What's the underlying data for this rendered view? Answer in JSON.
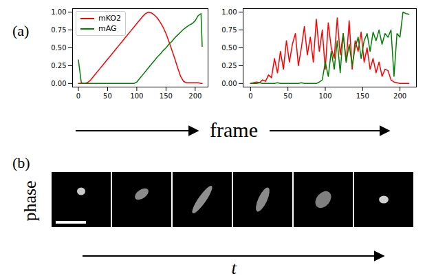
{
  "chart_data": [
    {
      "type": "line",
      "x": [
        0,
        5,
        10,
        15,
        20,
        25,
        30,
        35,
        40,
        45,
        50,
        55,
        60,
        65,
        70,
        75,
        80,
        85,
        90,
        95,
        100,
        105,
        110,
        115,
        120,
        125,
        130,
        135,
        140,
        145,
        150,
        155,
        160,
        165,
        170,
        175,
        180,
        185,
        190,
        195,
        200,
        205,
        210,
        212
      ],
      "series": [
        {
          "name": "mKO2",
          "color": "#ff0000",
          "values": [
            0,
            0,
            0,
            0.01,
            0.04,
            0.09,
            0.14,
            0.19,
            0.24,
            0.29,
            0.34,
            0.39,
            0.44,
            0.49,
            0.54,
            0.59,
            0.64,
            0.69,
            0.74,
            0.79,
            0.84,
            0.89,
            0.94,
            0.98,
            1.0,
            0.99,
            0.96,
            0.92,
            0.86,
            0.79,
            0.7,
            0.59,
            0.47,
            0.35,
            0.22,
            0.1,
            0.03,
            0.01,
            0.01,
            0.01,
            0.01,
            0.01,
            0,
            0
          ]
        },
        {
          "name": "mAG",
          "color": "#008000",
          "values": [
            0.33,
            0.01,
            0,
            0,
            0,
            0,
            0,
            0,
            0,
            0,
            0,
            0,
            0,
            0,
            0,
            0,
            0,
            0,
            0,
            0,
            0.02,
            0.07,
            0.12,
            0.17,
            0.22,
            0.27,
            0.32,
            0.37,
            0.41,
            0.46,
            0.5,
            0.55,
            0.59,
            0.64,
            0.68,
            0.72,
            0.76,
            0.79,
            0.82,
            0.84,
            0.88,
            0.95,
            0.98,
            0.52
          ]
        }
      ],
      "xlim": [
        -10,
        222
      ],
      "ylim": [
        -0.05,
        1.05
      ],
      "xticks": [
        0,
        50,
        100,
        150,
        200
      ],
      "yticks": [
        {
          "value": 0,
          "label": "0.00"
        },
        {
          "value": 0.25,
          "label": "0.25"
        },
        {
          "value": 0.5,
          "label": "0.50"
        },
        {
          "value": 0.75,
          "label": "0.75"
        },
        {
          "value": 1,
          "label": "1.00"
        }
      ],
      "legend": "upper left"
    },
    {
      "type": "line",
      "x": [
        0,
        4,
        8,
        12,
        16,
        20,
        24,
        28,
        32,
        36,
        40,
        44,
        48,
        52,
        56,
        60,
        64,
        68,
        72,
        76,
        80,
        84,
        88,
        92,
        96,
        100,
        104,
        108,
        112,
        116,
        120,
        124,
        128,
        132,
        136,
        140,
        144,
        148,
        152,
        156,
        160,
        164,
        168,
        172,
        176,
        180,
        184,
        188,
        192,
        196,
        200,
        204,
        208,
        212
      ],
      "series": [
        {
          "name": "mKO2",
          "color": "#ff0000",
          "values": [
            0,
            0.01,
            0.02,
            0.01,
            0.05,
            0.03,
            0.12,
            0.08,
            0.35,
            0.15,
            0.45,
            0.2,
            0.6,
            0.3,
            0.55,
            0.7,
            0.25,
            0.5,
            0.8,
            0.4,
            0.65,
            0.3,
            0.9,
            0.45,
            0.75,
            0.2,
            0.85,
            0.5,
            0.35,
            0.92,
            0.4,
            0.7,
            0.3,
            0.88,
            0.2,
            0.6,
            0.45,
            0.72,
            0.3,
            0.5,
            0.2,
            0.35,
            0.15,
            0.3,
            0.1,
            0.2,
            0.18,
            0.05,
            0.02,
            0.01,
            0,
            0,
            0,
            0
          ]
        },
        {
          "name": "mAG",
          "color": "#008000",
          "values": [
            0,
            0,
            0,
            0.01,
            0,
            0,
            0,
            0,
            0,
            0.01,
            0,
            0,
            0,
            0,
            0,
            0,
            0,
            0.01,
            0,
            0,
            0,
            0,
            0,
            0.02,
            0.05,
            0.3,
            0.1,
            0.45,
            0.2,
            0.6,
            0.15,
            0.7,
            0.3,
            0.55,
            0.25,
            0.5,
            0.65,
            0.35,
            0.6,
            0.7,
            0.45,
            0.72,
            0.6,
            0.75,
            0.55,
            0.7,
            0.65,
            0.75,
            0.1,
            0.7,
            0.65,
            1.0,
            0.98,
            0.97
          ]
        }
      ],
      "xlim": [
        -10,
        222
      ],
      "ylim": [
        -0.05,
        1.05
      ],
      "xticks": [
        0,
        50,
        100,
        150,
        200
      ],
      "yticks": [
        {
          "value": 0,
          "label": "0.00"
        },
        {
          "value": 0.25,
          "label": "0.25"
        },
        {
          "value": 0.5,
          "label": "0.50"
        },
        {
          "value": 0.75,
          "label": "0.75"
        },
        {
          "value": 1,
          "label": "1.00"
        }
      ]
    }
  ],
  "panel_labels": [
    "(a)",
    "(b)"
  ],
  "shared_xlabel": "frame",
  "image_row": {
    "label": "phase",
    "count": 6,
    "axis_label": "t"
  }
}
